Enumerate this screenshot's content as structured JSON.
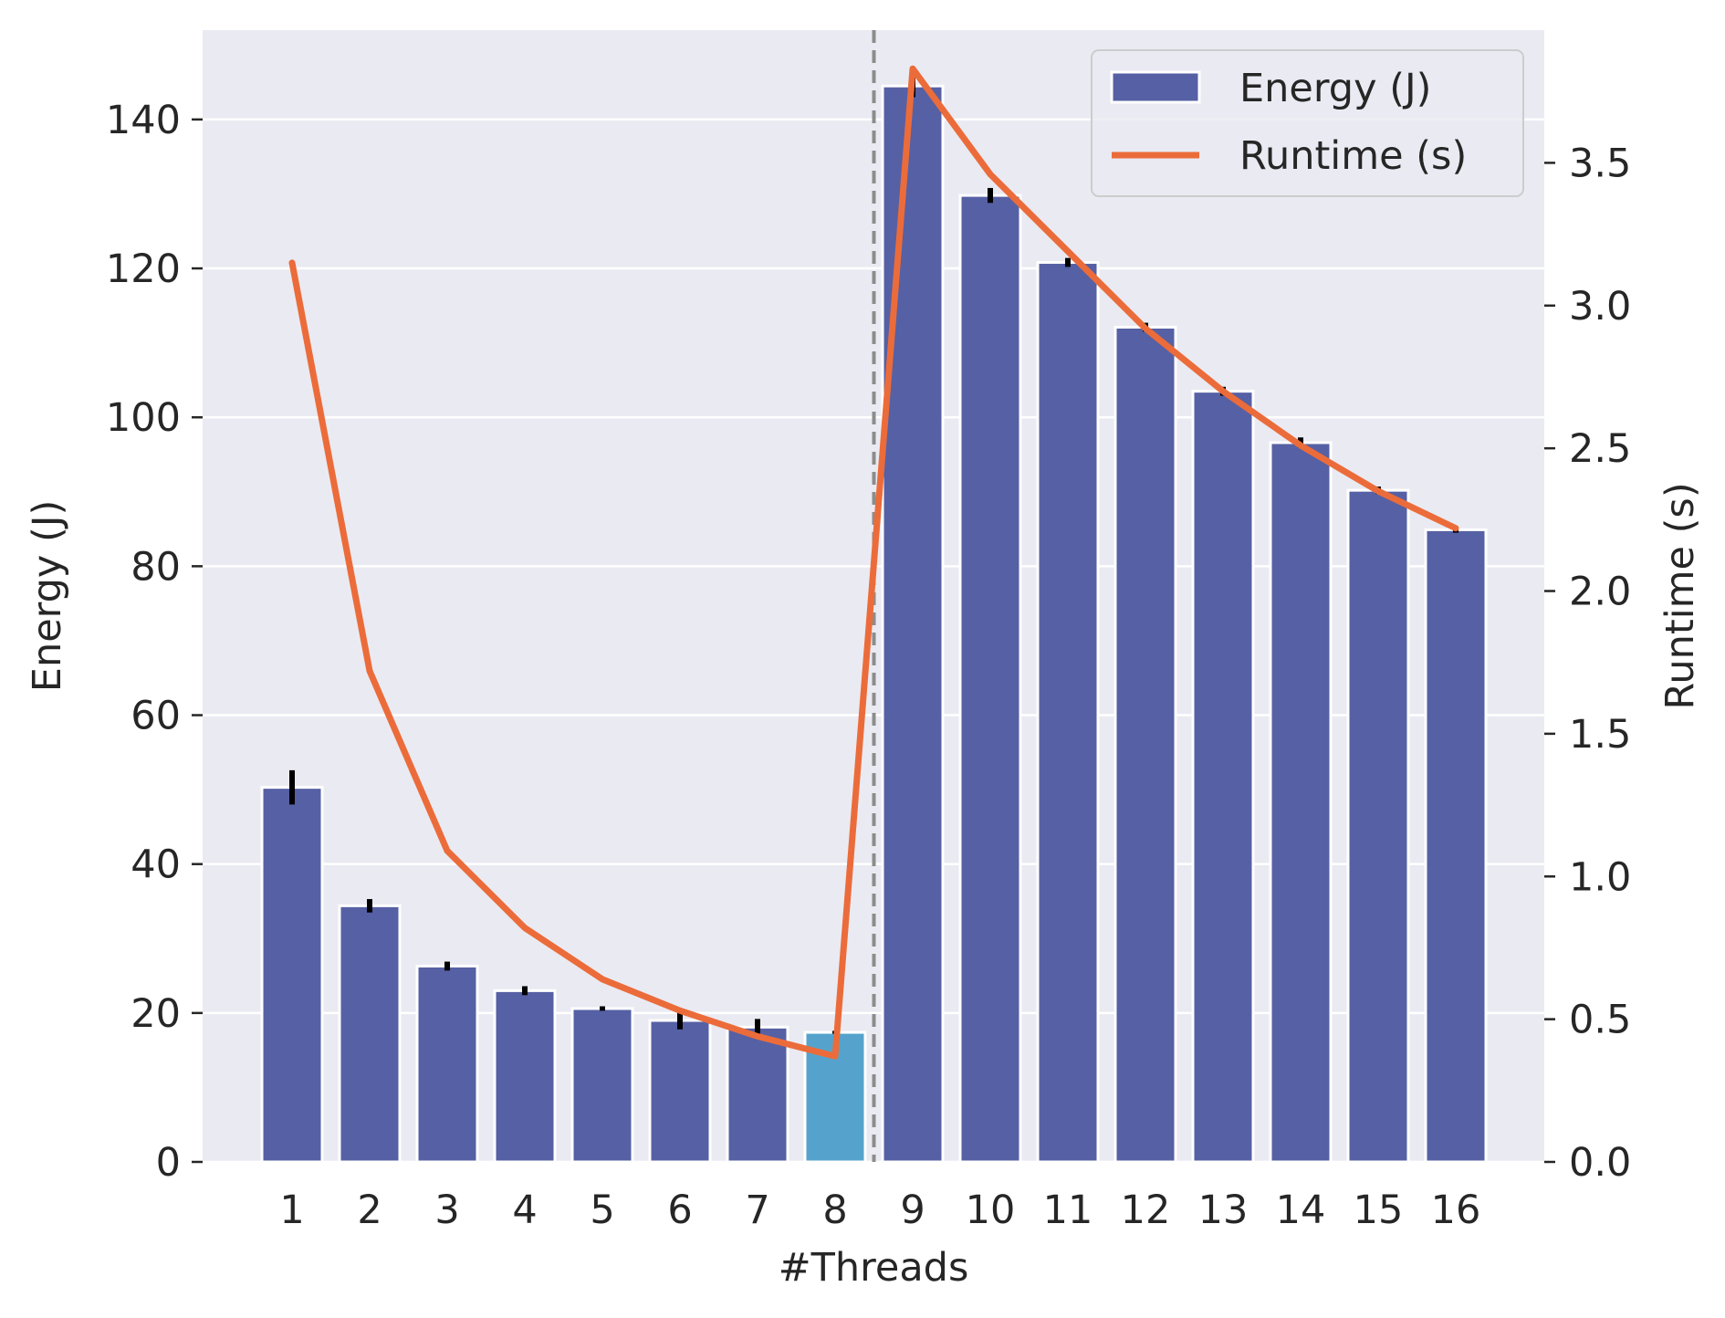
{
  "chart_data": {
    "type": "bar",
    "xlabel": "#Threads",
    "ylabel": "Energy (J)",
    "y2label": "Runtime (s)",
    "categories": [
      "1",
      "2",
      "3",
      "4",
      "5",
      "6",
      "7",
      "8",
      "9",
      "10",
      "11",
      "12",
      "13",
      "14",
      "15",
      "16"
    ],
    "series": [
      {
        "name": "Energy (J)",
        "type": "bar",
        "axis": "left",
        "values": [
          50.3,
          34.4,
          26.3,
          23.0,
          20.6,
          19.0,
          18.1,
          17.4,
          144.5,
          129.8,
          120.8,
          112.1,
          103.5,
          96.6,
          90.2,
          84.9
        ],
        "errors": [
          2.3,
          0.9,
          0.6,
          0.6,
          0.3,
          1.2,
          1.1,
          0.2,
          1.5,
          1.0,
          0.6,
          0.6,
          0.6,
          0.7,
          0.5,
          0.4
        ],
        "color": "#5660a4",
        "highlight_index": 7,
        "highlight_color": "#55a3cc"
      },
      {
        "name": "Runtime (s)",
        "type": "line",
        "axis": "right",
        "values": [
          3.15,
          1.72,
          1.09,
          0.82,
          0.64,
          0.53,
          0.44,
          0.37,
          3.83,
          3.46,
          3.19,
          2.92,
          2.7,
          2.51,
          2.35,
          2.22
        ],
        "color": "#eb6c3a"
      }
    ],
    "ylim": [
      0,
      152
    ],
    "y2lim": [
      0,
      3.965
    ],
    "yticks": [
      "0",
      "20",
      "40",
      "60",
      "80",
      "100",
      "120",
      "140"
    ],
    "y2ticks": [
      "0.0",
      "0.5",
      "1.0",
      "1.5",
      "2.0",
      "2.5",
      "3.0",
      "3.5"
    ],
    "vline_between": [
      "8",
      "9"
    ],
    "vline_style": "dashed",
    "legend_position": "top-right",
    "grid": true,
    "colors": {
      "plot_background": "#eaeaf2",
      "grid": "#ffffff",
      "vline": "#8c8c8c",
      "error_bar": "#000000"
    }
  }
}
